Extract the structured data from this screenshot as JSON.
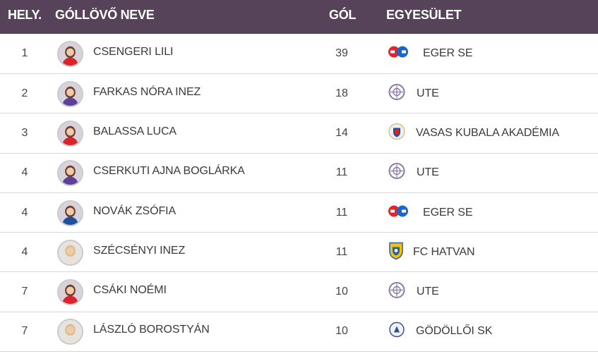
{
  "table": {
    "headers": {
      "rank": "HELY.",
      "name": "GÓLLÖVŐ NEVE",
      "goals": "GÓL",
      "club": "EGYESÜLET"
    },
    "rows": [
      {
        "rank": "1",
        "name": "CSENGERI LILI",
        "goals": "39",
        "club": "EGER SE",
        "club_icon": "eger-se-logo-icon",
        "kit": "red"
      },
      {
        "rank": "2",
        "name": "FARKAS NÓRA INEZ",
        "goals": "18",
        "club": "UTE",
        "club_icon": "ute-logo-icon",
        "kit": "purple"
      },
      {
        "rank": "3",
        "name": "BALASSA LUCA",
        "goals": "14",
        "club": "VASAS KUBALA AKADÉMIA",
        "club_icon": "vasas-logo-icon",
        "kit": "red"
      },
      {
        "rank": "4",
        "name": "CSERKUTI AJNA BOGLÁRKA",
        "goals": "11",
        "club": "UTE",
        "club_icon": "ute-logo-icon",
        "kit": "purple"
      },
      {
        "rank": "4",
        "name": "NOVÁK ZSÓFIA",
        "goals": "11",
        "club": "EGER SE",
        "club_icon": "eger-se-logo-icon",
        "kit": "blue"
      },
      {
        "rank": "4",
        "name": "SZÉCSÉNYI INEZ",
        "goals": "11",
        "club": "FC HATVAN",
        "club_icon": "fc-hatvan-logo-icon",
        "kit": "light"
      },
      {
        "rank": "7",
        "name": "CSÁKI NOÉMI",
        "goals": "10",
        "club": "UTE",
        "club_icon": "ute-logo-icon",
        "kit": "red"
      },
      {
        "rank": "7",
        "name": "LÁSZLÓ BOROSTYÁN",
        "goals": "10",
        "club": "GÖDÖLLŐI SK",
        "club_icon": "godolloi-sk-logo-icon",
        "kit": "light"
      }
    ]
  },
  "colors": {
    "header_bg": "#574359",
    "header_text": "#ffffff",
    "row_divider": "#d8d8d8",
    "ute_purple": "#8a7aa8",
    "eger_red": "#e0262b",
    "eger_blue": "#1f66c4",
    "hatvan_yellow": "#f0c400",
    "hatvan_blue": "#2d5fa8"
  }
}
